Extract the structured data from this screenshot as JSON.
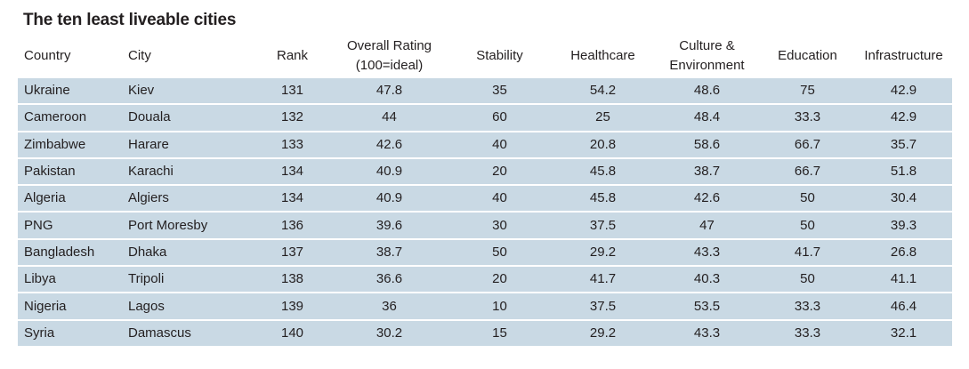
{
  "chart_data": {
    "type": "table",
    "title": "The ten least liveable cities",
    "columns": [
      {
        "lines": [
          "Country"
        ]
      },
      {
        "lines": [
          "City"
        ]
      },
      {
        "lines": [
          "Rank"
        ]
      },
      {
        "lines": [
          "Overall Rating",
          "(100=ideal)"
        ]
      },
      {
        "lines": [
          "Stability"
        ]
      },
      {
        "lines": [
          "Healthcare"
        ]
      },
      {
        "lines": [
          "Culture &",
          "Environment"
        ]
      },
      {
        "lines": [
          "Education"
        ]
      },
      {
        "lines": [
          "Infrastructure"
        ]
      }
    ],
    "rows": [
      [
        "Ukraine",
        "Kiev",
        "131",
        "47.8",
        "35",
        "54.2",
        "48.6",
        "75",
        "42.9"
      ],
      [
        "Cameroon",
        "Douala",
        "132",
        "44",
        "60",
        "25",
        "48.4",
        "33.3",
        "42.9"
      ],
      [
        "Zimbabwe",
        "Harare",
        "133",
        "42.6",
        "40",
        "20.8",
        "58.6",
        "66.7",
        "35.7"
      ],
      [
        "Pakistan",
        "Karachi",
        "134",
        "40.9",
        "20",
        "45.8",
        "38.7",
        "66.7",
        "51.8"
      ],
      [
        "Algeria",
        "Algiers",
        "134",
        "40.9",
        "40",
        "45.8",
        "42.6",
        "50",
        "30.4"
      ],
      [
        "PNG",
        "Port Moresby",
        "136",
        "39.6",
        "30",
        "37.5",
        "47",
        "50",
        "39.3"
      ],
      [
        "Bangladesh",
        "Dhaka",
        "137",
        "38.7",
        "50",
        "29.2",
        "43.3",
        "41.7",
        "26.8"
      ],
      [
        "Libya",
        "Tripoli",
        "138",
        "36.6",
        "20",
        "41.7",
        "40.3",
        "50",
        "41.1"
      ],
      [
        "Nigeria",
        "Lagos",
        "139",
        "36",
        "10",
        "37.5",
        "53.5",
        "33.3",
        "46.4"
      ],
      [
        "Syria",
        "Damascus",
        "140",
        "30.2",
        "15",
        "29.2",
        "43.3",
        "33.3",
        "32.1"
      ]
    ]
  },
  "colors": {
    "row_fill": "#c9d9e4",
    "text": "#231f20",
    "background": "#ffffff"
  }
}
